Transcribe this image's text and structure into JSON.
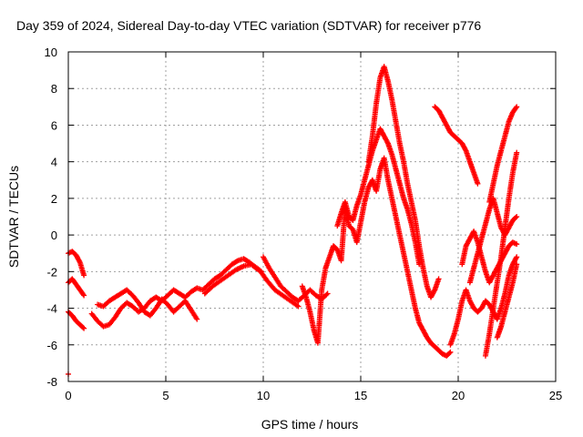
{
  "chart_data": {
    "type": "scatter",
    "title": "Day 359 of 2024, Sidereal Day-to-day VTEC variation (SDTVAR) for receiver p776",
    "xlabel": "GPS time / hours",
    "ylabel": "SDTVAR / TECUs",
    "xlim": [
      0,
      25
    ],
    "ylim": [
      -8,
      10
    ],
    "xticks": [
      0,
      5,
      10,
      15,
      20,
      25
    ],
    "yticks": [
      -8,
      -6,
      -4,
      -2,
      0,
      2,
      4,
      6,
      8,
      10
    ],
    "grid": true,
    "marker": "+",
    "color": "#ff0000",
    "series": [
      {
        "name": "satellite-track",
        "x": [
          0.0
        ],
        "y": [
          -7.6
        ]
      },
      {
        "name": "satellite-track",
        "x": [
          0.0,
          0.2,
          0.4,
          0.6,
          0.8
        ],
        "y": [
          -1.0,
          -0.9,
          -1.1,
          -1.5,
          -2.2
        ]
      },
      {
        "name": "satellite-track",
        "x": [
          0.0,
          0.2,
          0.4,
          0.6,
          0.8
        ],
        "y": [
          -2.6,
          -2.4,
          -2.7,
          -3.0,
          -3.3
        ]
      },
      {
        "name": "satellite-track",
        "x": [
          0.0,
          0.2,
          0.4,
          0.6,
          0.8
        ],
        "y": [
          -4.2,
          -4.4,
          -4.7,
          -4.9,
          -5.1
        ]
      },
      {
        "name": "satellite-track",
        "x": [
          1.2,
          1.5,
          1.8,
          2.1,
          2.4,
          2.7,
          3.0,
          3.3,
          3.6,
          3.9,
          4.2,
          4.5,
          4.8,
          5.1,
          5.4,
          5.7,
          6.0,
          6.3,
          6.6,
          6.9,
          7.2,
          7.5,
          7.8,
          8.1,
          8.4,
          8.7,
          9.0,
          9.3,
          9.6,
          9.9
        ],
        "y": [
          -4.3,
          -4.7,
          -5.0,
          -4.9,
          -4.5,
          -4.0,
          -3.7,
          -3.9,
          -4.2,
          -4.0,
          -3.6,
          -3.4,
          -3.6,
          -3.3,
          -3.0,
          -3.2,
          -3.4,
          -3.1,
          -2.9,
          -3.0,
          -2.7,
          -2.4,
          -2.2,
          -1.9,
          -1.6,
          -1.4,
          -1.3,
          -1.5,
          -1.8,
          -2.0
        ]
      },
      {
        "name": "satellite-track",
        "x": [
          1.5,
          1.8,
          2.1,
          2.4,
          2.7,
          3.0,
          3.3,
          3.6,
          3.9,
          4.2,
          4.5,
          4.8,
          5.1,
          5.4,
          5.7,
          6.0,
          6.3,
          6.6
        ],
        "y": [
          -3.8,
          -3.9,
          -3.6,
          -3.4,
          -3.2,
          -3.0,
          -3.3,
          -3.7,
          -4.2,
          -4.4,
          -4.0,
          -3.5,
          -3.8,
          -4.2,
          -3.9,
          -3.6,
          -4.1,
          -4.6
        ]
      },
      {
        "name": "satellite-track",
        "x": [
          7.0,
          7.4,
          7.8,
          8.2,
          8.6,
          9.0,
          9.4,
          9.8,
          10.2,
          10.6,
          11.0,
          11.4,
          11.8
        ],
        "y": [
          -3.2,
          -2.8,
          -2.5,
          -2.2,
          -1.9,
          -1.7,
          -1.6,
          -1.9,
          -2.5,
          -3.0,
          -3.3,
          -3.6,
          -3.9
        ]
      },
      {
        "name": "satellite-track",
        "x": [
          10.0,
          10.3,
          10.6,
          10.9,
          11.2,
          11.5,
          11.8,
          12.1,
          12.4,
          12.7,
          13.0,
          13.3
        ],
        "y": [
          -1.2,
          -1.8,
          -2.3,
          -2.8,
          -3.1,
          -3.4,
          -3.6,
          -3.3,
          -3.0,
          -3.3,
          -3.5,
          -3.2
        ]
      },
      {
        "name": "satellite-track",
        "x": [
          12.0,
          12.2,
          12.4,
          12.6,
          12.8,
          13.0,
          13.2,
          13.4,
          13.6,
          13.8,
          14.0,
          14.2,
          14.4,
          14.6,
          14.8,
          15.0,
          15.2,
          15.4,
          15.6,
          15.8,
          16.0,
          16.2,
          16.4,
          16.6,
          16.8,
          17.0,
          17.2,
          17.4,
          17.6,
          17.8,
          18.0,
          18.2,
          18.4,
          18.6,
          18.8,
          19.0,
          19.2,
          19.4,
          19.6
        ],
        "y": [
          -2.8,
          -3.4,
          -4.2,
          -5.2,
          -5.9,
          -3.0,
          -1.8,
          -1.2,
          -0.6,
          -0.8,
          -1.4,
          1.5,
          0.5,
          0.3,
          -0.4,
          0.7,
          1.8,
          2.6,
          3.0,
          2.4,
          3.6,
          4.2,
          3.0,
          2.0,
          1.0,
          0.0,
          -1.0,
          -2.0,
          -3.0,
          -4.0,
          -4.8,
          -5.2,
          -5.6,
          -5.9,
          -6.1,
          -6.3,
          -6.5,
          -6.6,
          -6.4
        ]
      },
      {
        "name": "satellite-track",
        "x": [
          13.8,
          14.0,
          14.2,
          14.4,
          14.6,
          14.8,
          15.0,
          15.2,
          15.4,
          15.6,
          15.8,
          16.0,
          16.2,
          16.4,
          16.6,
          16.8,
          17.0,
          17.2,
          17.4,
          17.6,
          17.8,
          18.0
        ],
        "y": [
          0.5,
          1.2,
          1.8,
          1.0,
          0.8,
          1.6,
          2.2,
          3.0,
          3.8,
          4.6,
          5.2,
          5.8,
          5.4,
          5.0,
          4.4,
          3.6,
          2.8,
          2.0,
          1.4,
          0.6,
          -0.4,
          -1.6
        ]
      },
      {
        "name": "satellite-track",
        "x": [
          15.4,
          15.6,
          15.8,
          16.0,
          16.2,
          16.4,
          16.6,
          16.8,
          17.0,
          17.2,
          17.4,
          17.6,
          17.8,
          18.0,
          18.2,
          18.4,
          18.6,
          18.8,
          19.0
        ],
        "y": [
          4.0,
          5.4,
          7.2,
          8.6,
          9.2,
          8.4,
          7.4,
          6.2,
          5.0,
          4.0,
          2.8,
          1.8,
          0.8,
          -0.6,
          -1.8,
          -2.8,
          -3.4,
          -3.0,
          -2.4
        ]
      },
      {
        "name": "satellite-track",
        "x": [
          18.8,
          19.0,
          19.2,
          19.4,
          19.6,
          19.8,
          20.0,
          20.2,
          20.4,
          20.6,
          20.8,
          21.0
        ],
        "y": [
          7.0,
          6.8,
          6.4,
          6.0,
          5.6,
          5.4,
          5.2,
          5.0,
          4.6,
          4.0,
          3.4,
          2.8
        ]
      },
      {
        "name": "satellite-track",
        "x": [
          19.6,
          19.8,
          20.0,
          20.2,
          20.4,
          20.6,
          20.8,
          21.0,
          21.2,
          21.4,
          21.6,
          21.8,
          22.0,
          22.2,
          22.4,
          22.6,
          22.8,
          23.0
        ],
        "y": [
          -6.0,
          -5.4,
          -4.6,
          -3.6,
          -3.0,
          -3.6,
          -4.0,
          -4.2,
          -4.0,
          -3.6,
          -3.8,
          -4.2,
          -4.6,
          -4.0,
          -3.2,
          -2.2,
          -1.6,
          -1.2
        ]
      },
      {
        "name": "satellite-track",
        "x": [
          20.2,
          20.4,
          20.6,
          20.8,
          21.0,
          21.2,
          21.4,
          21.6,
          21.8,
          22.0,
          22.2,
          22.4,
          22.6,
          22.8,
          23.0
        ],
        "y": [
          -1.6,
          -0.6,
          -0.2,
          0.2,
          -0.4,
          -1.2,
          -2.0,
          -2.6,
          -2.2,
          -1.8,
          -1.4,
          -1.0,
          -0.6,
          -0.4,
          -0.5
        ]
      },
      {
        "name": "satellite-track",
        "x": [
          20.6,
          20.8,
          21.0,
          21.2,
          21.4,
          21.6,
          21.8,
          22.0,
          22.2,
          22.4,
          22.6,
          22.8,
          23.0
        ],
        "y": [
          -2.6,
          -1.8,
          -1.0,
          -0.2,
          0.6,
          1.4,
          2.0,
          1.2,
          0.4,
          0.0,
          0.4,
          0.8,
          1.0
        ]
      },
      {
        "name": "satellite-track",
        "x": [
          21.4,
          21.6,
          21.8,
          22.0,
          22.2,
          22.4,
          22.6,
          22.8,
          23.0
        ],
        "y": [
          -6.6,
          -5.4,
          -4.0,
          -2.6,
          -1.2,
          0.4,
          2.0,
          3.4,
          4.5
        ]
      },
      {
        "name": "satellite-track",
        "x": [
          21.6,
          21.8,
          22.0,
          22.2,
          22.4,
          22.6,
          22.8,
          23.0
        ],
        "y": [
          1.8,
          2.8,
          3.8,
          4.6,
          5.4,
          6.2,
          6.7,
          7.0
        ]
      },
      {
        "name": "satellite-track",
        "x": [
          22.0,
          22.2,
          22.4,
          22.6,
          22.8,
          23.0
        ],
        "y": [
          -5.6,
          -5.0,
          -4.2,
          -3.4,
          -2.6,
          -1.6
        ]
      }
    ]
  }
}
